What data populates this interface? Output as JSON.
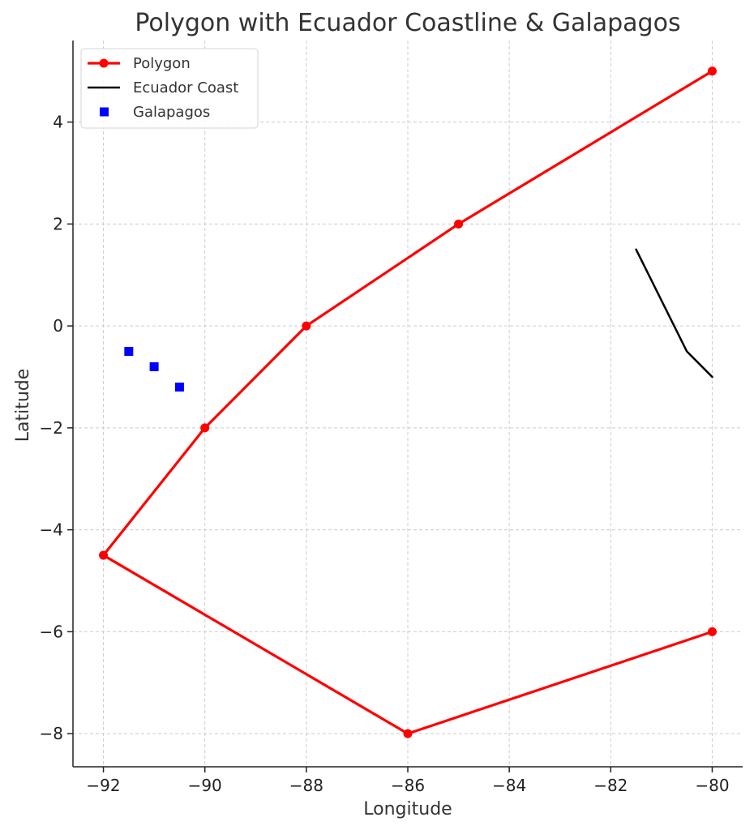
{
  "chart_data": {
    "type": "line",
    "title": "Polygon with Ecuador Coastline & Galapagos",
    "xlabel": "Longitude",
    "ylabel": "Latitude",
    "xlim": [
      -92.6,
      -79.4
    ],
    "ylim": [
      -8.65,
      5.6
    ],
    "xticks": [
      -92,
      -90,
      -88,
      -86,
      -84,
      -82,
      -80
    ],
    "yticks": [
      -8,
      -6,
      -4,
      -2,
      0,
      2,
      4
    ],
    "xtick_labels": [
      "−92",
      "−90",
      "−88",
      "−86",
      "−84",
      "−82",
      "−80"
    ],
    "ytick_labels": [
      "−8",
      "−6",
      "−4",
      "−2",
      "0",
      "2",
      "4"
    ],
    "grid": true,
    "legend_position": "top-left",
    "series": [
      {
        "name": "Polygon",
        "kind": "line-marker",
        "color": "#ff0000",
        "x": [
          -80,
          -85,
          -88,
          -90,
          -92,
          -86,
          -80
        ],
        "y": [
          5,
          2,
          0,
          -2,
          -4.5,
          -8,
          -6
        ]
      },
      {
        "name": "Ecuador Coast",
        "kind": "line",
        "color": "#000000",
        "x": [
          -81.5,
          -81,
          -80.5,
          -80
        ],
        "y": [
          1.5,
          0.5,
          -0.5,
          -1
        ]
      },
      {
        "name": "Galapagos",
        "kind": "square-marker",
        "color": "#0000ff",
        "x": [
          -91.5,
          -91,
          -90.5
        ],
        "y": [
          -0.5,
          -0.8,
          -1.2
        ]
      }
    ]
  }
}
